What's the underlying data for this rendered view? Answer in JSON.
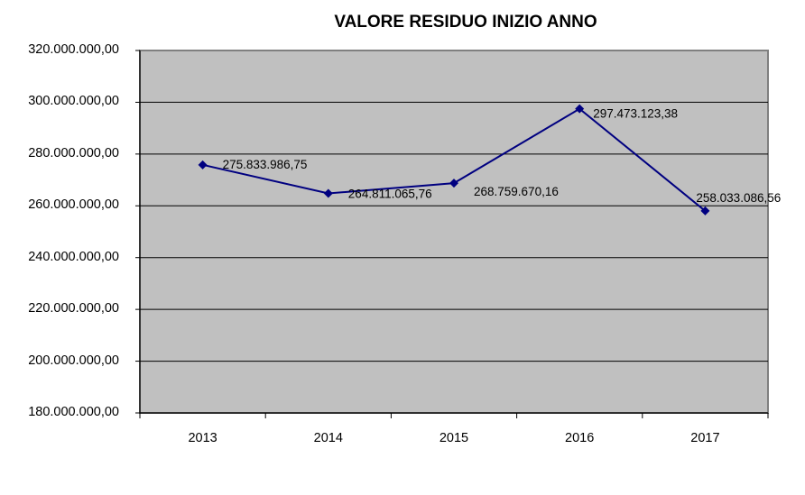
{
  "chart_data": {
    "type": "line",
    "title": "VALORE RESIDUO INIZIO ANNO",
    "xlabel": "",
    "ylabel": "",
    "categories": [
      "2013",
      "2014",
      "2015",
      "2016",
      "2017"
    ],
    "series": [
      {
        "name": "Valore residuo inizio anno",
        "values": [
          275833986.75,
          264811065.76,
          268759670.16,
          297473123.38,
          258033086.56
        ],
        "labels": [
          "275.833.986,75",
          "264.811.065,76",
          "268.759.670,16",
          "297.473.123,38",
          "258.033.086,56"
        ],
        "color": "#000080",
        "marker": "diamond"
      }
    ],
    "ylim": [
      180000000,
      320000000
    ],
    "yticks": [
      180000000,
      200000000,
      220000000,
      240000000,
      260000000,
      280000000,
      300000000,
      320000000
    ],
    "ytick_labels": [
      "180.000.000,00",
      "200.000.000,00",
      "220.000.000,00",
      "240.000.000,00",
      "260.000.000,00",
      "280.000.000,00",
      "300.000.000,00",
      "320.000.000,00"
    ],
    "grid": true,
    "legend": "none",
    "plot_background": "#c0c0c0"
  }
}
